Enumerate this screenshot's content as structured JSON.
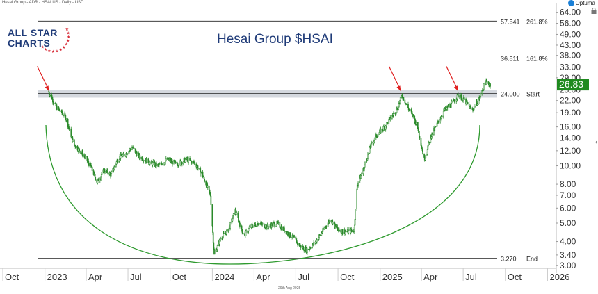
{
  "header": {
    "source_line": "Hesai Group - ADR - HSAI.US - Daily - USD",
    "brand": "Optuma",
    "date_stamp": "29th Aug 2025"
  },
  "logo": {
    "line1": "ALL STAR",
    "line2": "CHARTS"
  },
  "icons": [
    "optuma-logo-icon",
    "lock-icon",
    "collapse-arrow-icon",
    "arrow-annotation-icon",
    "star-icon"
  ],
  "colors": {
    "candle": "#2a8a2a",
    "price_label_bg": "#1f8a1f",
    "arc": "#2e9a2e",
    "arrow": "#e02020",
    "zone": "#c9ced6",
    "title": "#1f3b78"
  },
  "chart_data": {
    "type": "candlestick",
    "title": "Hesai Group $HSAI",
    "y_scale": "log",
    "ylim": [
      2.8,
      66
    ],
    "x_range": [
      "2022-10-01",
      "2026-01-20"
    ],
    "x_ticks": [
      {
        "label": "Oct",
        "date": "2022-10-01"
      },
      {
        "label": "2023",
        "date": "2023-01-01"
      },
      {
        "label": "Apr",
        "date": "2023-04-01"
      },
      {
        "label": "Jul",
        "date": "2023-07-01"
      },
      {
        "label": "Oct",
        "date": "2023-10-01"
      },
      {
        "label": "2024",
        "date": "2024-01-01"
      },
      {
        "label": "Apr",
        "date": "2024-04-01"
      },
      {
        "label": "Jul",
        "date": "2024-07-01"
      },
      {
        "label": "Oct",
        "date": "2024-10-01"
      },
      {
        "label": "2025",
        "date": "2025-01-01"
      },
      {
        "label": "Apr",
        "date": "2025-04-01"
      },
      {
        "label": "Jul",
        "date": "2025-07-01"
      },
      {
        "label": "Oct",
        "date": "2025-10-01"
      },
      {
        "label": "2026",
        "date": "2026-01-01"
      }
    ],
    "y_ticks": [
      "64.00",
      "56.00",
      "49.00",
      "43.00",
      "38.00",
      "33.00",
      "29.00",
      "25.00",
      "22.00",
      "19.00",
      "16.00",
      "14.00",
      "12.00",
      "10.00",
      "8.00",
      "7.00",
      "6.00",
      "5.00",
      "4.00",
      "3.40",
      "3.00"
    ],
    "last_price": "26.83",
    "fib_levels": [
      {
        "value": 57.541,
        "label": "57.541",
        "pct": "261.8%"
      },
      {
        "value": 36.811,
        "label": "36.811",
        "pct": "161.8%"
      },
      {
        "value": 24.0,
        "label": "24.000",
        "pct": "Start"
      },
      {
        "value": 3.27,
        "label": "3.270",
        "pct": "End"
      }
    ],
    "resistance_zone": [
      22.8,
      25.0
    ],
    "arrows": [
      {
        "date": "2023-01-10",
        "value": 24.0
      },
      {
        "date": "2025-02-15",
        "value": 24.0
      },
      {
        "date": "2025-06-20",
        "value": 24.0
      }
    ],
    "price_path": [
      [
        "2023-01-09",
        24.5
      ],
      [
        "2023-01-25",
        20.5
      ],
      [
        "2023-02-15",
        18.0
      ],
      [
        "2023-03-05",
        13.0
      ],
      [
        "2023-03-25",
        11.5
      ],
      [
        "2023-04-10",
        10.0
      ],
      [
        "2023-04-25",
        8.2
      ],
      [
        "2023-05-10",
        9.5
      ],
      [
        "2023-05-25",
        9.0
      ],
      [
        "2023-06-10",
        11.0
      ],
      [
        "2023-06-25",
        11.5
      ],
      [
        "2023-07-10",
        12.5
      ],
      [
        "2023-07-25",
        11.2
      ],
      [
        "2023-08-15",
        10.5
      ],
      [
        "2023-09-05",
        10.0
      ],
      [
        "2023-09-25",
        10.8
      ],
      [
        "2023-10-15",
        10.2
      ],
      [
        "2023-11-05",
        10.8
      ],
      [
        "2023-11-25",
        10.3
      ],
      [
        "2023-12-10",
        9.0
      ],
      [
        "2023-12-28",
        7.0
      ],
      [
        "2024-01-05",
        3.4
      ],
      [
        "2024-01-20",
        4.2
      ],
      [
        "2024-02-05",
        4.6
      ],
      [
        "2024-02-20",
        5.8
      ],
      [
        "2024-03-10",
        4.3
      ],
      [
        "2024-03-25",
        4.8
      ],
      [
        "2024-04-10",
        5.0
      ],
      [
        "2024-04-30",
        4.8
      ],
      [
        "2024-05-20",
        5.0
      ],
      [
        "2024-06-10",
        4.5
      ],
      [
        "2024-06-25",
        4.2
      ],
      [
        "2024-07-10",
        3.8
      ],
      [
        "2024-07-25",
        3.6
      ],
      [
        "2024-08-10",
        3.9
      ],
      [
        "2024-08-30",
        4.6
      ],
      [
        "2024-09-15",
        5.3
      ],
      [
        "2024-09-30",
        4.6
      ],
      [
        "2024-10-20",
        4.5
      ],
      [
        "2024-11-05",
        4.6
      ],
      [
        "2024-11-12",
        8.0
      ],
      [
        "2024-11-25",
        9.5
      ],
      [
        "2024-12-10",
        12.5
      ],
      [
        "2024-12-25",
        14.5
      ],
      [
        "2025-01-10",
        16.0
      ],
      [
        "2025-01-25",
        18.0
      ],
      [
        "2025-02-05",
        19.5
      ],
      [
        "2025-02-18",
        23.5
      ],
      [
        "2025-03-01",
        20.5
      ],
      [
        "2025-03-15",
        18.0
      ],
      [
        "2025-03-25",
        15.5
      ],
      [
        "2025-04-07",
        10.8
      ],
      [
        "2025-04-20",
        14.0
      ],
      [
        "2025-05-05",
        16.5
      ],
      [
        "2025-05-20",
        19.5
      ],
      [
        "2025-06-05",
        21.0
      ],
      [
        "2025-06-20",
        23.5
      ],
      [
        "2025-07-05",
        22.0
      ],
      [
        "2025-07-20",
        19.5
      ],
      [
        "2025-08-05",
        22.5
      ],
      [
        "2025-08-18",
        27.5
      ],
      [
        "2025-08-29",
        26.83
      ]
    ]
  }
}
